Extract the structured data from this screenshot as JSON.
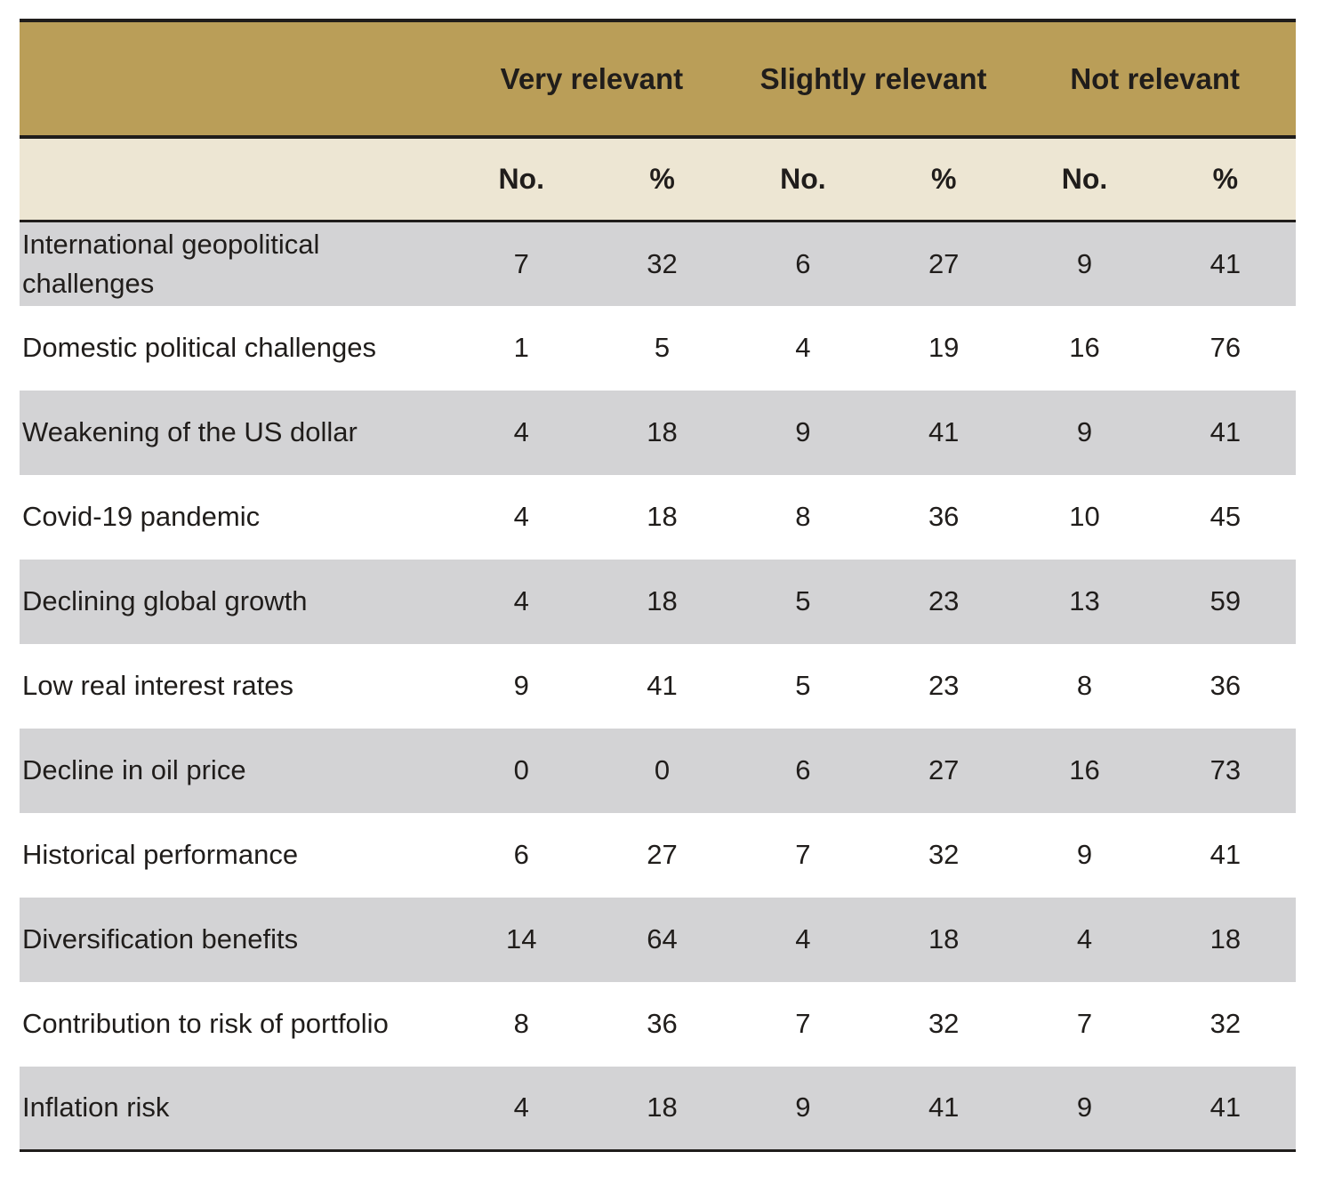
{
  "table": {
    "group_headers": [
      "Very relevant",
      "Slightly relevant",
      "Not relevant"
    ],
    "sub_headers": [
      "No.",
      "%",
      "No.",
      "%",
      "No.",
      "%"
    ],
    "rows": [
      {
        "label": "International geopolitical challenges",
        "values": [
          "7",
          "32",
          "6",
          "27",
          "9",
          "41"
        ]
      },
      {
        "label": "Domestic political challenges",
        "values": [
          "1",
          "5",
          "4",
          "19",
          "16",
          "76"
        ]
      },
      {
        "label": "Weakening of the US dollar",
        "values": [
          "4",
          "18",
          "9",
          "41",
          "9",
          "41"
        ]
      },
      {
        "label": "Covid-19 pandemic",
        "values": [
          "4",
          "18",
          "8",
          "36",
          "10",
          "45"
        ]
      },
      {
        "label": "Declining global growth",
        "values": [
          "4",
          "18",
          "5",
          "23",
          "13",
          "59"
        ]
      },
      {
        "label": "Low real interest rates",
        "values": [
          "9",
          "41",
          "5",
          "23",
          "8",
          "36"
        ]
      },
      {
        "label": "Decline in oil price",
        "values": [
          "0",
          "0",
          "6",
          "27",
          "16",
          "73"
        ]
      },
      {
        "label": "Historical performance",
        "values": [
          "6",
          "27",
          "7",
          "32",
          "9",
          "41"
        ]
      },
      {
        "label": "Diversification benefits",
        "values": [
          "14",
          "64",
          "4",
          "18",
          "4",
          "18"
        ]
      },
      {
        "label": "Contribution to risk of portfolio",
        "values": [
          "8",
          "36",
          "7",
          "32",
          "7",
          "32"
        ]
      },
      {
        "label": "Inflation risk",
        "values": [
          "4",
          "18",
          "9",
          "41",
          "9",
          "41"
        ]
      }
    ],
    "colors": {
      "header_gold": "#BA9E58",
      "subheader_cream": "#EDE6D3",
      "row_gray": "#D3D3D5",
      "row_white": "#FFFFFF",
      "border_black": "#201D1B",
      "text": "#201D1B"
    }
  }
}
